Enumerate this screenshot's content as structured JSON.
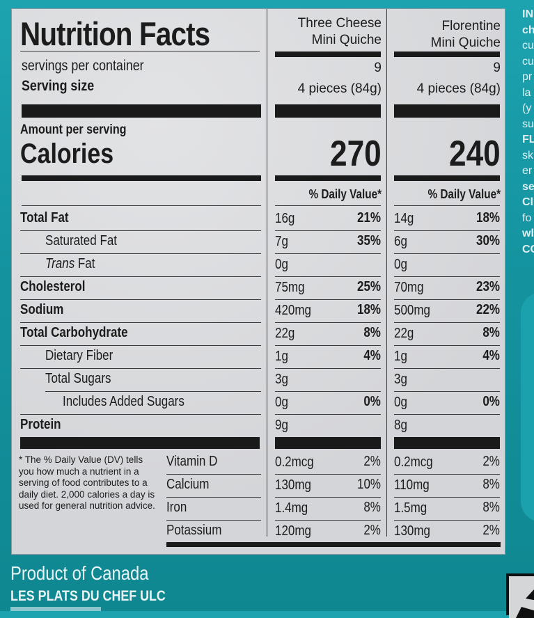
{
  "label": {
    "title": "Nutrition Facts",
    "servings_label": "servings per container",
    "serving_size_label": "Serving size",
    "amount_per_serving": "Amount per serving",
    "calories_label": "Calories",
    "dv_header": "% Daily Value*",
    "products": [
      {
        "name_line1": "Three Cheese",
        "name_line2": "Mini Quiche",
        "servings": "9",
        "serving_size": "4 pieces (84g)",
        "calories": "270"
      },
      {
        "name_line1": "Florentine",
        "name_line2": "Mini Quiche",
        "servings": "9",
        "serving_size": "4 pieces (84g)",
        "calories": "240"
      }
    ],
    "nutrients": [
      {
        "label": "Total Fat",
        "bold": true,
        "indent": 0,
        "p1_amt": "16g",
        "p1_dv": "21%",
        "p2_amt": "14g",
        "p2_dv": "18%"
      },
      {
        "label": "Saturated Fat",
        "bold": false,
        "indent": 1,
        "p1_amt": "7g",
        "p1_dv": "35%",
        "p2_amt": "6g",
        "p2_dv": "30%"
      },
      {
        "label_italic": "Trans",
        "label": " Fat",
        "bold": false,
        "indent": 1,
        "p1_amt": "0g",
        "p1_dv": "",
        "p2_amt": "0g",
        "p2_dv": ""
      },
      {
        "label": "Cholesterol",
        "bold": true,
        "indent": 0,
        "p1_amt": "75mg",
        "p1_dv": "25%",
        "p2_amt": "70mg",
        "p2_dv": "23%"
      },
      {
        "label": "Sodium",
        "bold": true,
        "indent": 0,
        "p1_amt": "420mg",
        "p1_dv": "18%",
        "p2_amt": "500mg",
        "p2_dv": "22%"
      },
      {
        "label": "Total Carbohydrate",
        "bold": true,
        "indent": 0,
        "p1_amt": "22g",
        "p1_dv": "8%",
        "p2_amt": "22g",
        "p2_dv": "8%"
      },
      {
        "label": "Dietary Fiber",
        "bold": false,
        "indent": 1,
        "p1_amt": "1g",
        "p1_dv": "4%",
        "p2_amt": "1g",
        "p2_dv": "4%"
      },
      {
        "label": "Total Sugars",
        "bold": false,
        "indent": 1,
        "p1_amt": "3g",
        "p1_dv": "",
        "p2_amt": "3g",
        "p2_dv": ""
      },
      {
        "label": "Includes Added Sugars",
        "bold": false,
        "indent": 2,
        "p1_amt": "0g",
        "p1_dv": "0%",
        "p2_amt": "0g",
        "p2_dv": "0%"
      },
      {
        "label": "Protein",
        "bold": true,
        "indent": 0,
        "p1_amt": "9g",
        "p1_dv": "",
        "p2_amt": "8g",
        "p2_dv": ""
      }
    ],
    "micronutrients": [
      {
        "label": "Vitamin D",
        "p1_amt": "0.2mcg",
        "p1_dv": "2%",
        "p2_amt": "0.2mcg",
        "p2_dv": "2%"
      },
      {
        "label": "Calcium",
        "p1_amt": "130mg",
        "p1_dv": "10%",
        "p2_amt": "110mg",
        "p2_dv": "8%"
      },
      {
        "label": "Iron",
        "p1_amt": "1.4mg",
        "p1_dv": "8%",
        "p2_amt": "1.5mg",
        "p2_dv": "8%"
      },
      {
        "label": "Potassium",
        "p1_amt": "120mg",
        "p1_dv": "2%",
        "p2_amt": "130mg",
        "p2_dv": "2%"
      }
    ],
    "footnote": "* The % Daily Value (DV) tells you how much a nutrient in a serving of food contributes to a daily diet. 2,000 calories a day is used for general nutrition advice."
  },
  "package": {
    "origin": "Product of Canada",
    "company": "LES PLATS DU CHEF ULC",
    "side_text_fragments": [
      "IN",
      "ch",
      "cu",
      "cu",
      "pr",
      "la",
      "(y",
      "su",
      "FL",
      "sk",
      "er",
      "se",
      "Cl",
      "fo",
      "wl",
      "CC"
    ],
    "colors": {
      "teal": "#14939f",
      "label_bg": "#d9dadc",
      "ink": "#1a1a1a"
    }
  }
}
